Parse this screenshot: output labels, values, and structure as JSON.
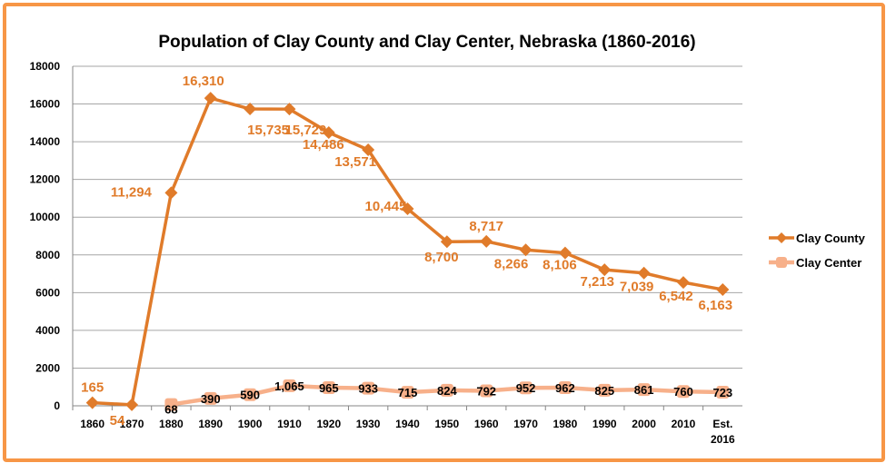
{
  "chart_data": {
    "type": "line",
    "title": "Population of Clay County and Clay Center, Nebraska (1860-2016)",
    "categories": [
      "1860",
      "1870",
      "1880",
      "1890",
      "1900",
      "1910",
      "1920",
      "1930",
      "1940",
      "1950",
      "1960",
      "1970",
      "1980",
      "1990",
      "2000",
      "2010",
      "Est. 2016"
    ],
    "ylim": [
      0,
      18000
    ],
    "yticks": [
      0,
      2000,
      4000,
      6000,
      8000,
      10000,
      12000,
      14000,
      16000,
      18000
    ],
    "grid": true,
    "legend_position": "right",
    "series": [
      {
        "name": "Clay County",
        "color": "#E07B2A",
        "marker": "diamond",
        "values": [
          165,
          54,
          11294,
          16310,
          15735,
          15729,
          14486,
          13571,
          10445,
          8700,
          8717,
          8266,
          8106,
          7213,
          7039,
          6542,
          6163
        ],
        "labels": [
          "165",
          "54",
          "11,294",
          "16,310",
          "15,735",
          "15,729",
          "14,486",
          "13,571",
          "10,445",
          "8,700",
          "8,717",
          "8,266",
          "8,106",
          "7,213",
          "7,039",
          "6,542",
          "6,163"
        ]
      },
      {
        "name": "Clay Center",
        "color": "#F7B08A",
        "marker": "square",
        "values": [
          null,
          null,
          68,
          390,
          590,
          1065,
          965,
          933,
          715,
          824,
          792,
          952,
          962,
          825,
          861,
          760,
          723
        ],
        "labels": [
          null,
          null,
          "68",
          "390",
          "590",
          "1,065",
          "965",
          "933",
          "715",
          "824",
          "792",
          "952",
          "962",
          "825",
          "861",
          "760",
          "723"
        ]
      }
    ]
  },
  "border_color": "#F79646"
}
